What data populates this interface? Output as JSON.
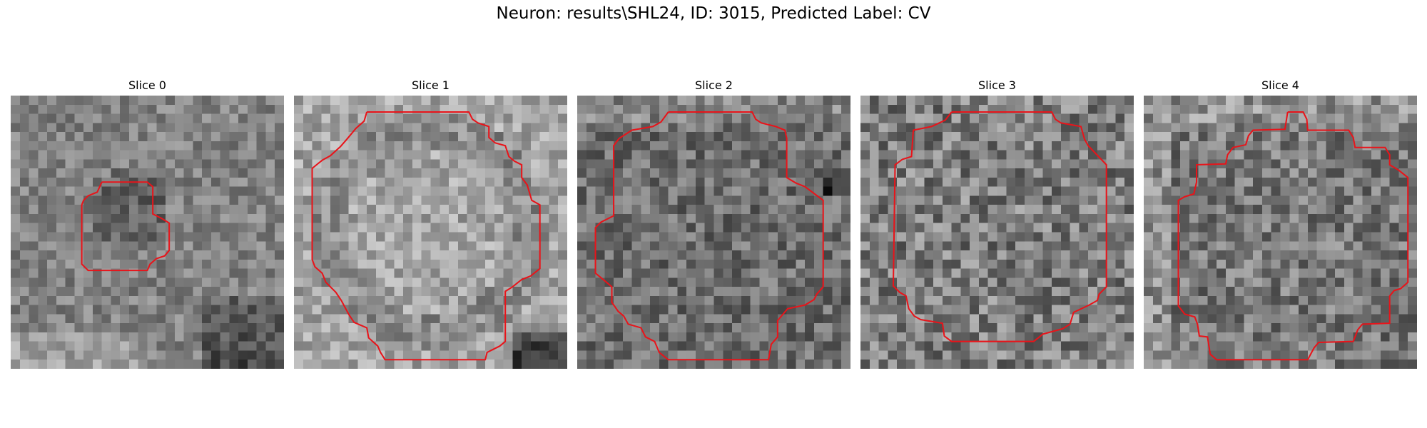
{
  "figure": {
    "title": "Neuron: results\\SHL24, ID: 3015, Predicted Label: CV"
  },
  "contour_color": "#e8141a",
  "slices": [
    {
      "title": "Slice 0"
    },
    {
      "title": "Slice 1"
    },
    {
      "title": "Slice 2"
    },
    {
      "title": "Slice 3"
    },
    {
      "title": "Slice 4"
    }
  ]
}
